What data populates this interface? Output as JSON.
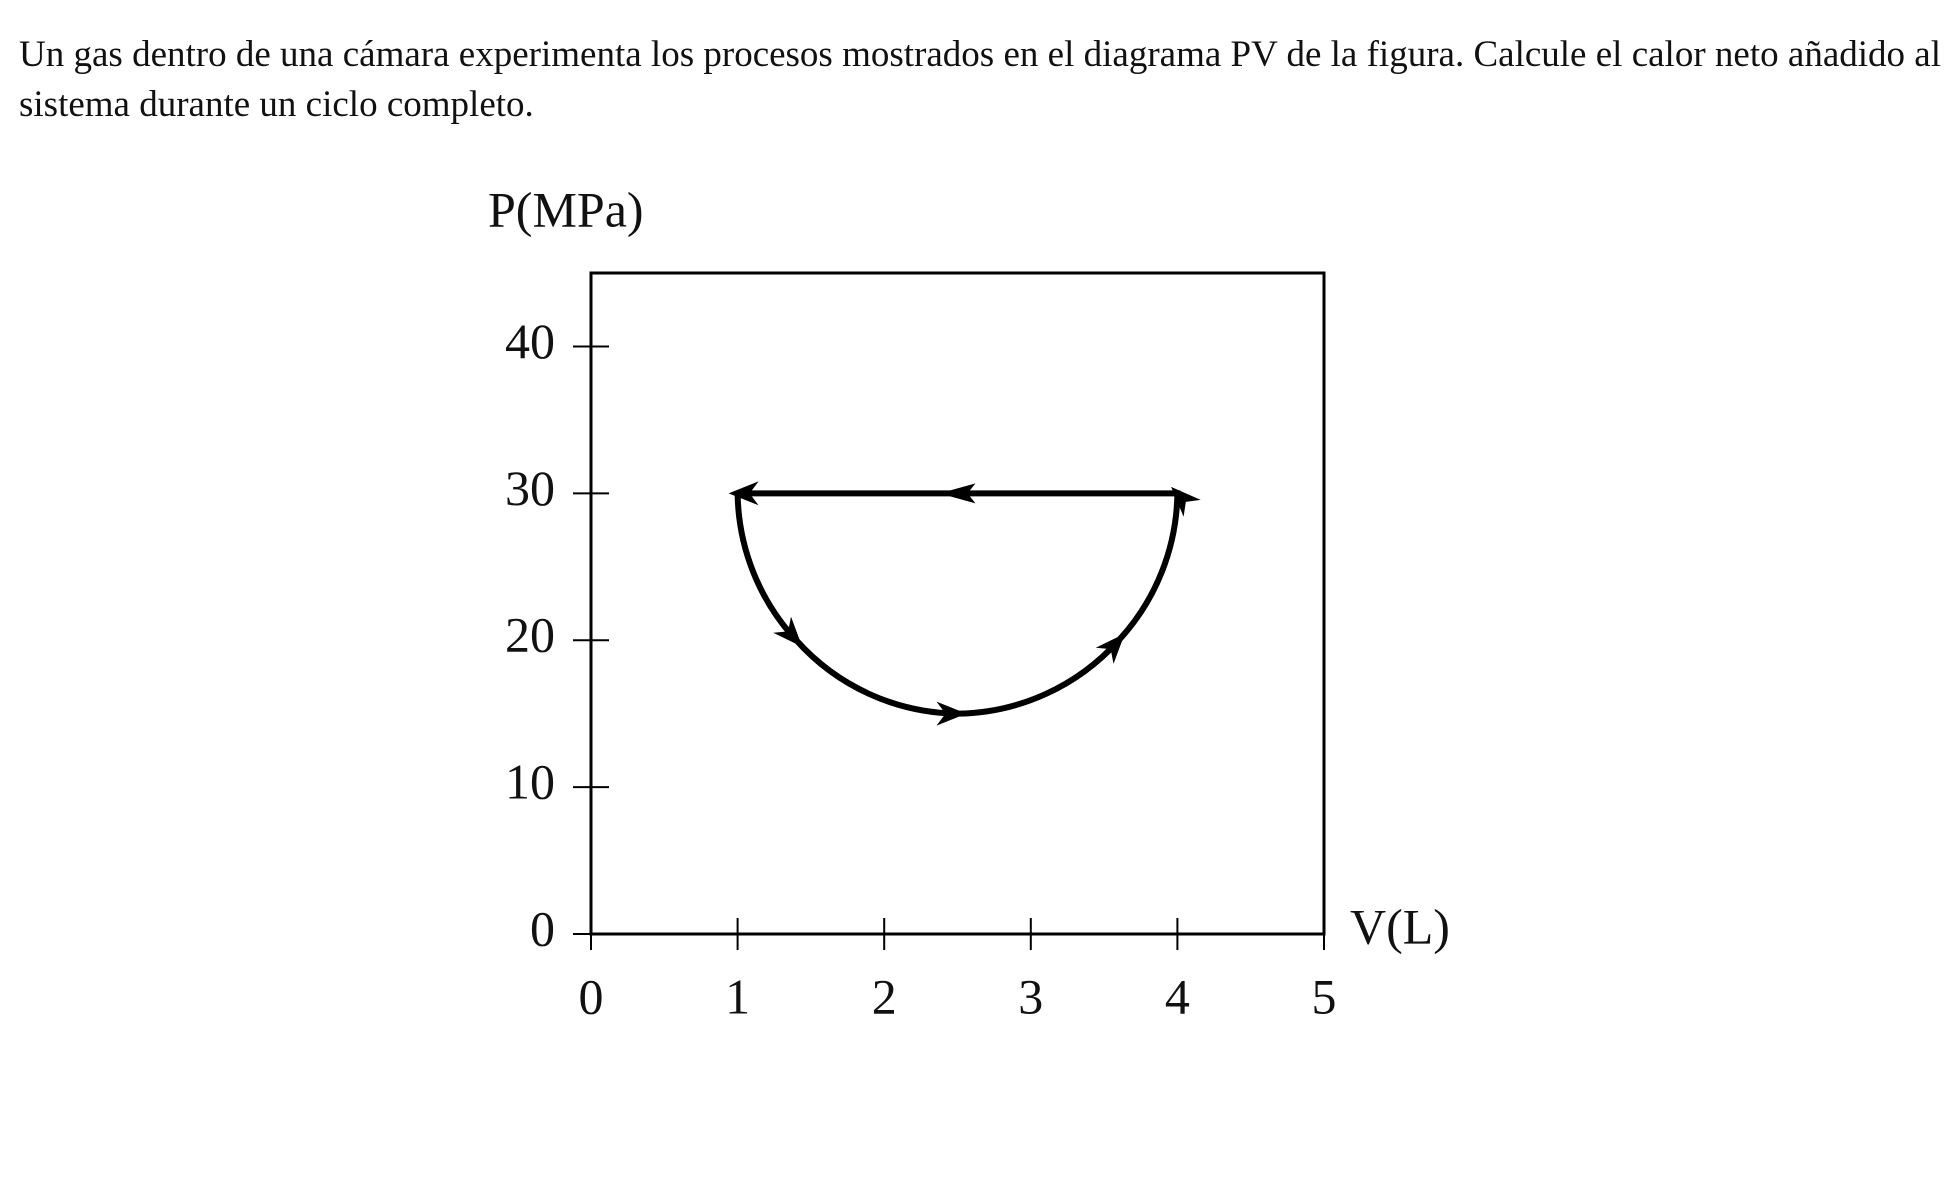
{
  "question": "Un gas dentro de una cámara experimenta los procesos mostrados en el diagrama PV de la figura. Calcule el calor neto añadido al sistema durante un ciclo completo.",
  "chart_data": {
    "type": "line",
    "x_label": "V(L)",
    "y_label": "P(MPa)",
    "series": [
      {
        "color": "#000000",
        "x": [
          1,
          1.4,
          2.5,
          3.6,
          4,
          1
        ],
        "values": [
          30,
          20,
          15,
          20,
          30,
          30
        ]
      }
    ],
    "xlim": [
      0,
      5
    ],
    "xticks": [
      0,
      1,
      2,
      3,
      4,
      5
    ],
    "ylim": [
      0,
      45
    ],
    "yticks": [
      0,
      10,
      20,
      30,
      40
    ]
  }
}
